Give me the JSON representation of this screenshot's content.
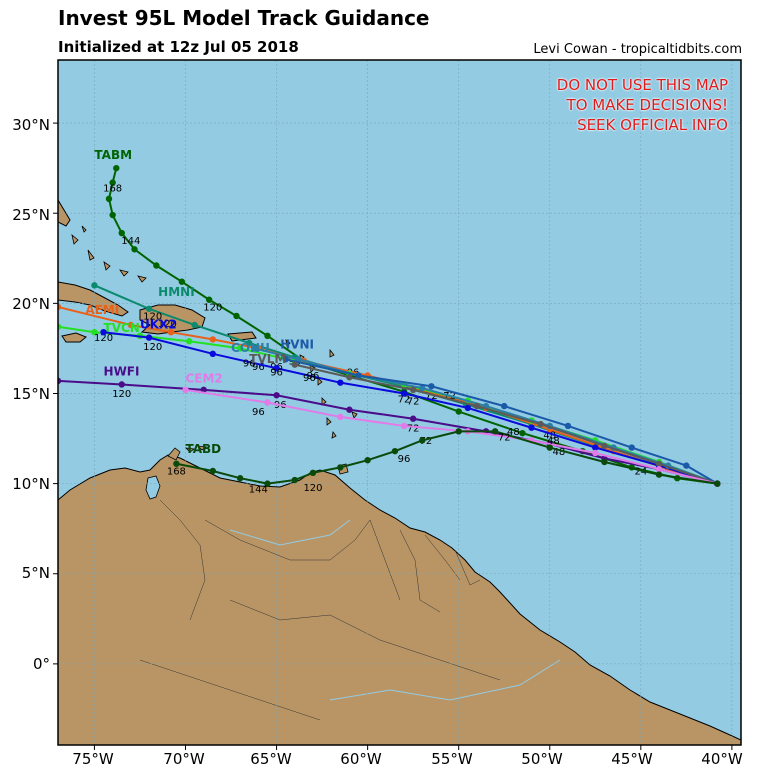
{
  "header": {
    "title": "Invest 95L Model Track Guidance",
    "subtitle": "Initialized at 12z Jul 05 2018",
    "credit": "Levi Cowan - tropicaltidbits.com"
  },
  "warning": {
    "line1": "DO NOT USE THIS MAP",
    "line2": "TO MAKE DECISIONS!",
    "line3": "SEEK OFFICIAL INFO"
  },
  "map": {
    "ocean_color": "#93cbe3",
    "land_color": "#b99565",
    "lon_range": [
      -77,
      -39.5
    ],
    "lat_range": [
      -4.5,
      33.5
    ],
    "lat_ticks": [
      "30°N",
      "25°N",
      "20°N",
      "15°N",
      "10°N",
      "5°N",
      "0°"
    ],
    "lon_ticks": [
      "75°W",
      "70°W",
      "65°W",
      "60°W",
      "55°W",
      "50°W",
      "45°W",
      "40°W"
    ],
    "grid": true
  },
  "tracks": [
    {
      "name": "TABM",
      "color": "#006400",
      "points": [
        [
          -40.8,
          10.0
        ],
        [
          -43.0,
          10.3
        ],
        [
          -45.5,
          10.9
        ],
        [
          -48.2,
          11.8
        ],
        [
          -51.5,
          12.8
        ],
        [
          -55.0,
          14.0
        ],
        [
          -58.0,
          15.1
        ],
        [
          -61.0,
          16.0
        ],
        [
          -63.5,
          16.8
        ],
        [
          -65.5,
          18.2
        ],
        [
          -67.2,
          19.3
        ],
        [
          -68.7,
          20.2
        ],
        [
          -70.2,
          21.2
        ],
        [
          -71.6,
          22.1
        ],
        [
          -72.8,
          23.0
        ],
        [
          -73.5,
          23.9
        ],
        [
          -74.0,
          24.9
        ],
        [
          -74.2,
          25.8
        ],
        [
          -74.0,
          26.7
        ],
        [
          -73.8,
          27.5
        ]
      ],
      "hour_labels": [
        {
          "t": "168",
          "x": -74.0,
          "y": 26.2
        },
        {
          "t": "144",
          "x": -73.0,
          "y": 23.3
        },
        {
          "t": "120",
          "x": -68.5,
          "y": 19.6
        },
        {
          "t": "96",
          "x": -60.8,
          "y": 16.0
        },
        {
          "t": "72",
          "x": -58.0,
          "y": 14.5
        },
        {
          "t": "48",
          "x": -52.0,
          "y": 12.7
        },
        {
          "t": "24",
          "x": -45.0,
          "y": 10.5
        }
      ],
      "label": "TABM",
      "label_pos": [
        -75.0,
        28.0
      ]
    },
    {
      "name": "HMNI",
      "color": "#0b8a6d",
      "points": [
        [
          -40.8,
          10.0
        ],
        [
          -44.0,
          11.0
        ],
        [
          -47.5,
          12.1
        ],
        [
          -51.0,
          13.3
        ],
        [
          -54.6,
          14.4
        ],
        [
          -58.0,
          15.4
        ],
        [
          -61.0,
          16.1
        ],
        [
          -64.0,
          17.0
        ],
        [
          -66.5,
          17.8
        ],
        [
          -69.5,
          18.8
        ],
        [
          -72.0,
          19.7
        ],
        [
          -75.0,
          21.0
        ]
      ],
      "hour_labels": [
        {
          "t": "120",
          "x": -71.8,
          "y": 19.1
        },
        {
          "t": "96",
          "x": -64.0,
          "y": 16.6
        },
        {
          "t": "72",
          "x": -56.5,
          "y": 14.7
        }
      ],
      "label": "HMNI",
      "label_pos": [
        -71.5,
        20.4
      ]
    },
    {
      "name": "AEMI",
      "color": "#e8611a",
      "points": [
        [
          -40.8,
          10.0
        ],
        [
          -43.5,
          10.8
        ],
        [
          -46.5,
          11.8
        ],
        [
          -50.0,
          13.0
        ],
        [
          -53.5,
          14.2
        ],
        [
          -57.0,
          15.2
        ],
        [
          -60.0,
          16.0
        ],
        [
          -63.5,
          16.8
        ],
        [
          -66.0,
          17.5
        ],
        [
          -68.5,
          18.0
        ],
        [
          -70.8,
          18.4
        ],
        [
          -73.0,
          18.8
        ],
        [
          -77.0,
          19.8
        ]
      ],
      "hour_labels": [
        {
          "t": "120",
          "x": -71.0,
          "y": 18.7
        },
        {
          "t": "96",
          "x": -65.0,
          "y": 16.3
        },
        {
          "t": "72",
          "x": -55.5,
          "y": 14.7
        },
        {
          "t": "48",
          "x": -50.0,
          "y": 12.5
        }
      ],
      "label": "AEMI",
      "label_pos": [
        -75.5,
        19.4
      ]
    },
    {
      "name": "TVCN",
      "color": "#22e022",
      "points": [
        [
          -40.8,
          10.0
        ],
        [
          -44.0,
          11.2
        ],
        [
          -47.5,
          12.4
        ],
        [
          -51.0,
          13.5
        ],
        [
          -54.5,
          14.6
        ],
        [
          -58.0,
          15.5
        ],
        [
          -61.0,
          16.1
        ],
        [
          -64.0,
          16.8
        ],
        [
          -67.0,
          17.5
        ],
        [
          -69.8,
          17.9
        ],
        [
          -72.5,
          18.2
        ],
        [
          -75.0,
          18.4
        ],
        [
          -77.0,
          18.7
        ]
      ],
      "hour_labels": [
        {
          "t": "120",
          "x": -74.5,
          "y": 17.9
        },
        {
          "t": "96",
          "x": -66.0,
          "y": 16.3
        }
      ],
      "label": "TVCN",
      "label_pos": [
        -74.5,
        18.4
      ]
    },
    {
      "name": "UKX2",
      "color": "#0a0adc",
      "points": [
        [
          -40.8,
          10.0
        ],
        [
          -44.0,
          11.0
        ],
        [
          -47.5,
          12.0
        ],
        [
          -51.0,
          13.1
        ],
        [
          -54.5,
          14.2
        ],
        [
          -58.0,
          15.0
        ],
        [
          -61.5,
          15.6
        ],
        [
          -65.0,
          16.4
        ],
        [
          -68.5,
          17.2
        ],
        [
          -72.0,
          18.1
        ],
        [
          -74.5,
          18.4
        ]
      ],
      "hour_labels": [
        {
          "t": "120",
          "x": -71.8,
          "y": 17.4
        },
        {
          "t": "96",
          "x": -66.5,
          "y": 16.5
        },
        {
          "t": "72",
          "x": -57.5,
          "y": 14.4
        }
      ],
      "label": "UKX2",
      "label_pos": [
        -72.5,
        18.6
      ]
    },
    {
      "name": "CONU",
      "color": "#2a7fa8",
      "points": [
        [
          -40.8,
          10.0
        ],
        [
          -43.5,
          11.0
        ],
        [
          -46.5,
          12.0
        ],
        [
          -50.0,
          13.2
        ],
        [
          -53.5,
          14.3
        ],
        [
          -57.0,
          15.3
        ],
        [
          -60.5,
          16.0
        ],
        [
          -63.8,
          16.9
        ],
        [
          -66.2,
          17.5
        ]
      ],
      "hour_labels": [
        {
          "t": "96",
          "x": -63.2,
          "y": 15.7
        }
      ],
      "label": "CONU",
      "label_pos": [
        -67.5,
        17.3
      ]
    },
    {
      "name": "HVNI",
      "color": "#1a5aa8",
      "points": [
        [
          -40.8,
          10.0
        ],
        [
          -42.5,
          11.0
        ],
        [
          -45.5,
          12.0
        ],
        [
          -49.0,
          13.2
        ],
        [
          -52.5,
          14.3
        ],
        [
          -56.5,
          15.4
        ],
        [
          -60.5,
          16.0
        ],
        [
          -64.5,
          16.9
        ]
      ],
      "hour_labels": [
        {
          "t": "96",
          "x": -63.0,
          "y": 15.8
        }
      ],
      "label": "HVNI",
      "label_pos": [
        -64.8,
        17.5
      ]
    },
    {
      "name": "TVLM",
      "color": "#5a5a5a",
      "points": [
        [
          -40.8,
          10.0
        ],
        [
          -44.0,
          11.1
        ],
        [
          -47.0,
          12.1
        ],
        [
          -50.5,
          13.3
        ],
        [
          -54.0,
          14.3
        ],
        [
          -57.5,
          15.2
        ],
        [
          -61.0,
          15.9
        ],
        [
          -64.0,
          16.6
        ]
      ],
      "hour_labels": [
        {
          "t": "96",
          "x": -65.0,
          "y": 16.0
        }
      ],
      "label": "TVLM",
      "label_pos": [
        -66.5,
        16.7
      ]
    },
    {
      "name": "HWFI",
      "color": "#4b0c8a",
      "points": [
        [
          -40.8,
          10.0
        ],
        [
          -44.0,
          10.8
        ],
        [
          -47.0,
          11.4
        ],
        [
          -50.0,
          12.2
        ],
        [
          -53.5,
          12.9
        ],
        [
          -57.5,
          13.6
        ],
        [
          -61.0,
          14.1
        ],
        [
          -65.0,
          14.9
        ],
        [
          -69.0,
          15.2
        ],
        [
          -73.5,
          15.5
        ],
        [
          -77.0,
          15.7
        ]
      ],
      "hour_labels": [
        {
          "t": "120",
          "x": -73.5,
          "y": 14.8
        },
        {
          "t": "96",
          "x": -64.8,
          "y": 14.2
        },
        {
          "t": "72",
          "x": -57.5,
          "y": 12.9
        },
        {
          "t": "48",
          "x": -49.5,
          "y": 11.6
        }
      ],
      "label": "HWFI",
      "label_pos": [
        -74.5,
        16.0
      ]
    },
    {
      "name": "CEM2",
      "color": "#e27ae8",
      "points": [
        [
          -40.8,
          10.0
        ],
        [
          -44.0,
          10.8
        ],
        [
          -47.5,
          11.7
        ],
        [
          -51.0,
          12.4
        ],
        [
          -54.5,
          12.9
        ],
        [
          -58.0,
          13.2
        ],
        [
          -61.5,
          13.7
        ],
        [
          -65.5,
          14.5
        ],
        [
          -70.0,
          15.2
        ]
      ],
      "hour_labels": [
        {
          "t": "96",
          "x": -66.0,
          "y": 13.8
        },
        {
          "t": "72",
          "x": -56.8,
          "y": 12.2
        },
        {
          "t": "48",
          "x": -49.8,
          "y": 12.2
        }
      ],
      "label": "CEM2",
      "label_pos": [
        -70.0,
        15.6
      ]
    },
    {
      "name": "TABD",
      "color": "#0a4a0a",
      "points": [
        [
          -40.8,
          10.0
        ],
        [
          -44.0,
          10.5
        ],
        [
          -47.0,
          11.2
        ],
        [
          -50.0,
          12.0
        ],
        [
          -53.0,
          12.9
        ],
        [
          -55.0,
          12.9
        ],
        [
          -57.0,
          12.4
        ],
        [
          -58.5,
          11.8
        ],
        [
          -60.0,
          11.3
        ],
        [
          -61.5,
          10.9
        ],
        [
          -63.0,
          10.6
        ],
        [
          -64.0,
          10.2
        ],
        [
          -65.5,
          10.0
        ],
        [
          -67.0,
          10.3
        ],
        [
          -68.5,
          10.7
        ],
        [
          -70.5,
          11.1
        ]
      ],
      "hour_labels": [
        {
          "t": "168",
          "x": -70.5,
          "y": 10.5
        },
        {
          "t": "144",
          "x": -66.0,
          "y": 9.5
        },
        {
          "t": "120",
          "x": -63.0,
          "y": 9.6
        },
        {
          "t": "96",
          "x": -58.0,
          "y": 11.2
        },
        {
          "t": "72",
          "x": -52.5,
          "y": 12.4
        }
      ],
      "label": "TABD",
      "label_pos": [
        -70.0,
        11.7
      ]
    }
  ]
}
